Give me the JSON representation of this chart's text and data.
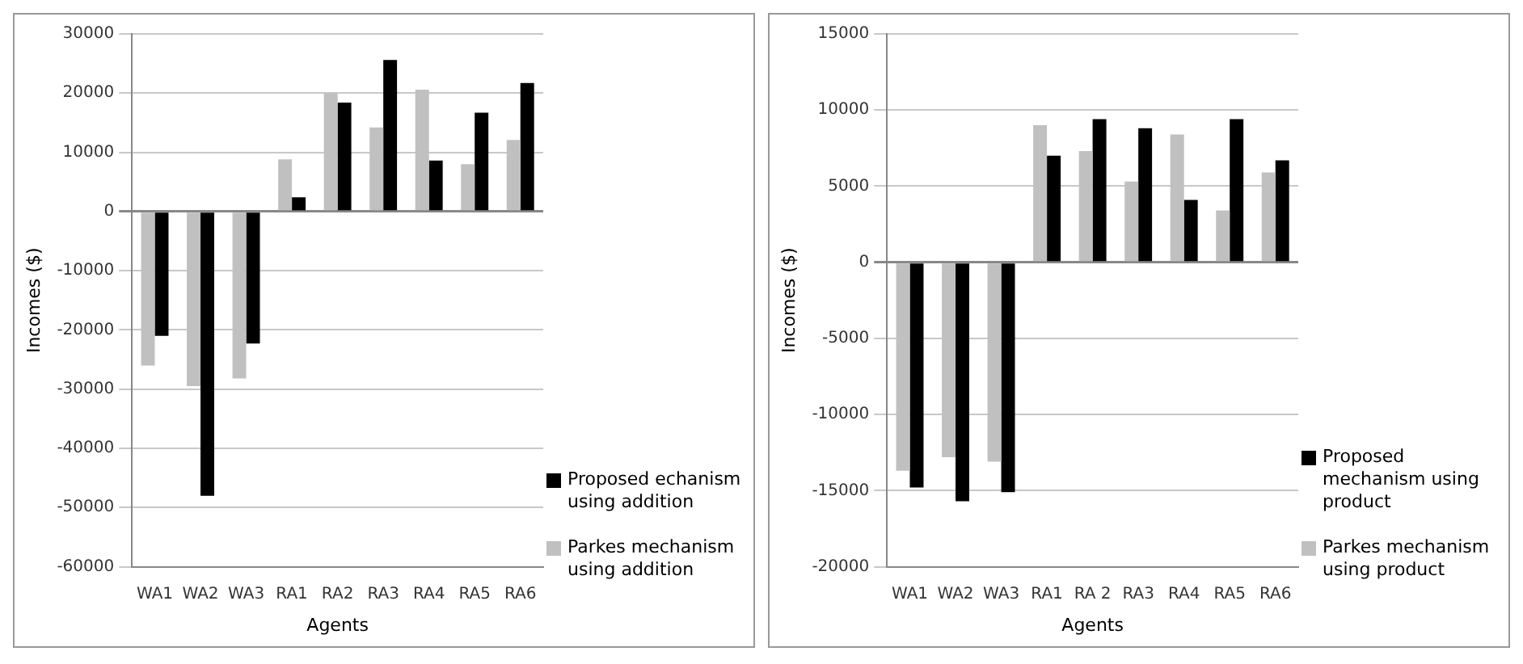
{
  "chart_data": [
    {
      "type": "bar",
      "xlabel": "Agents",
      "ylabel": "Incomes ($)",
      "categories": [
        "WA1",
        "WA2",
        "WA3",
        "RA1",
        "RA2",
        "RA3",
        "RA4",
        "RA5",
        "RA6"
      ],
      "series": [
        {
          "name": "Parkes mechanism using addition",
          "color": "#c0c0c0",
          "values": [
            -26000,
            -29500,
            -28200,
            8800,
            20000,
            14200,
            20600,
            8000,
            12100
          ]
        },
        {
          "name": "Proposed echanism using addition",
          "color": "#000000",
          "values": [
            -21000,
            -48000,
            -22300,
            2400,
            18400,
            25600,
            8600,
            16700,
            21700
          ]
        }
      ],
      "ylim": [
        -60000,
        30000
      ],
      "yticks": [
        -60000,
        -50000,
        -40000,
        -30000,
        -20000,
        -10000,
        0,
        10000,
        20000,
        30000
      ],
      "grid": "y",
      "legend": "bottom right"
    },
    {
      "type": "bar",
      "xlabel": "Agents",
      "ylabel": "Incomes ($)",
      "categories": [
        "WA1",
        "WA2",
        "WA3",
        "RA1",
        "RA 2",
        "RA3",
        "RA4",
        "RA5",
        "RA6"
      ],
      "series": [
        {
          "name": "Parkes mechanism using product",
          "color": "#c0c0c0",
          "values": [
            -13700,
            -12800,
            -13100,
            9000,
            7300,
            5300,
            8400,
            3400,
            5900
          ]
        },
        {
          "name": "Proposed mechanism using product",
          "color": "#000000",
          "values": [
            -14800,
            -15700,
            -15100,
            7000,
            9400,
            8800,
            4100,
            9400,
            6700
          ]
        }
      ],
      "ylim": [
        -20000,
        15000
      ],
      "yticks": [
        -20000,
        -15000,
        -10000,
        -5000,
        0,
        5000,
        10000,
        15000
      ],
      "grid": "y",
      "legend": "bottom right"
    }
  ]
}
